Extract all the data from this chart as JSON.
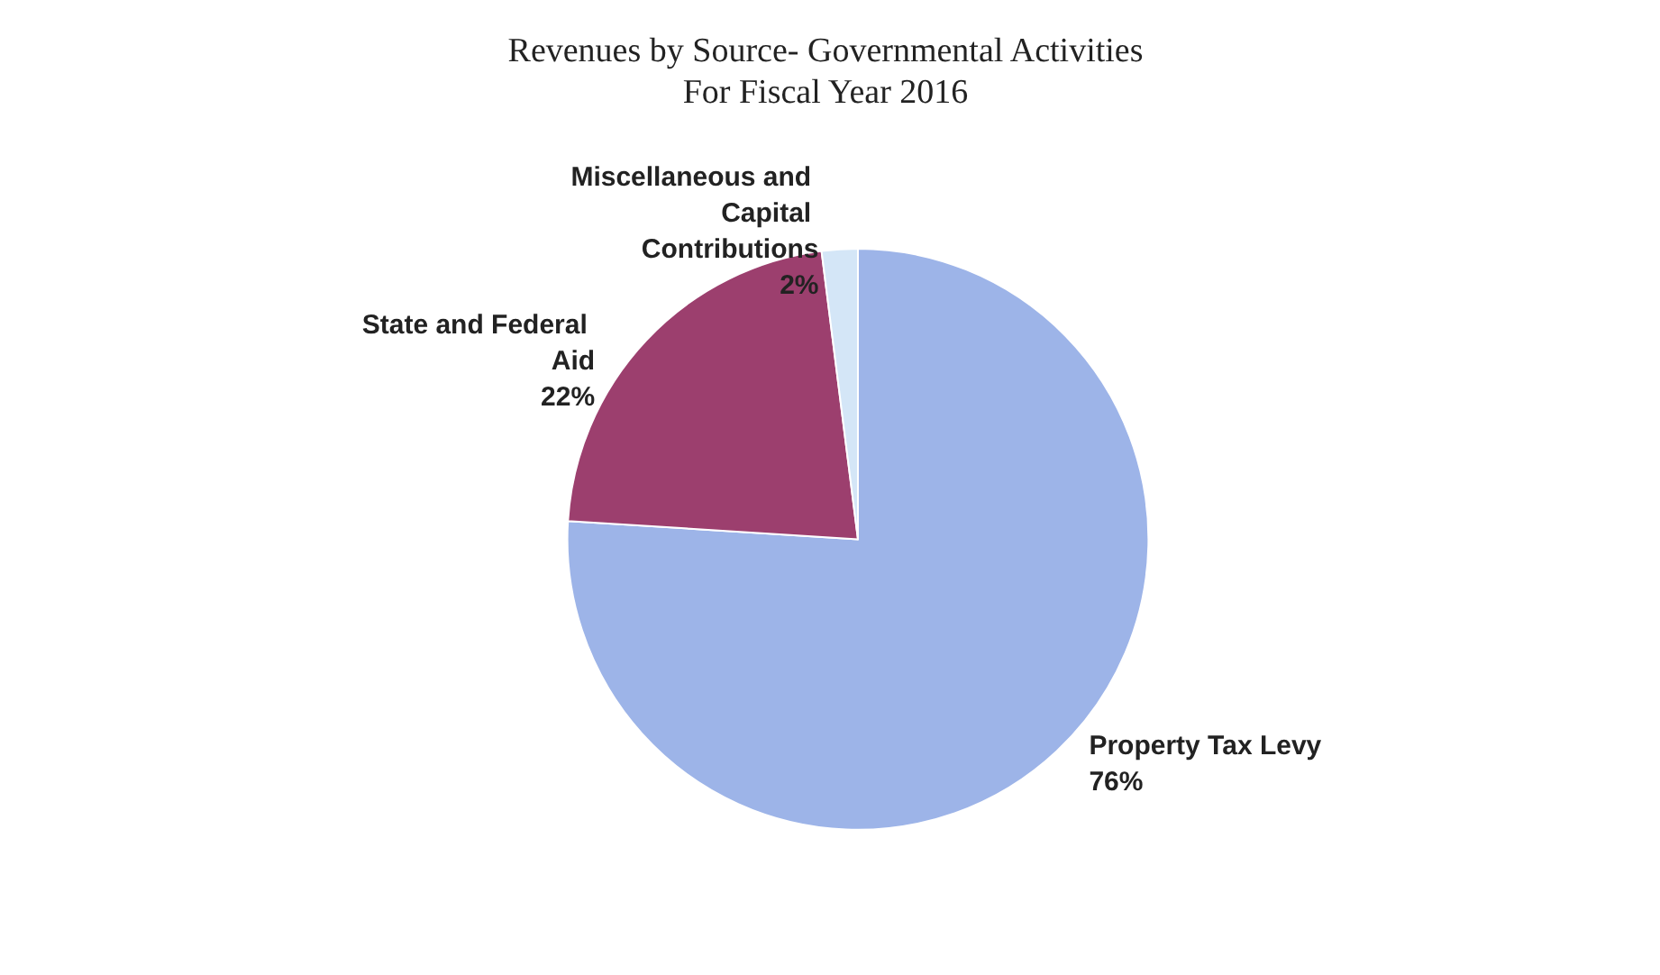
{
  "chart_data": {
    "type": "pie",
    "title": "Revenues by Source- Governmental Activities",
    "subtitle": "For Fiscal Year 2016",
    "categories": [
      "Property Tax Levy",
      "State and Federal Aid",
      "Miscellaneous and Capital Contributions"
    ],
    "values": [
      76,
      22,
      2
    ],
    "value_labels": [
      "76%",
      "22%",
      "2%"
    ],
    "colors": [
      "#9db4e8",
      "#9c3f6e",
      "#d4e6f7"
    ],
    "legend": false
  }
}
